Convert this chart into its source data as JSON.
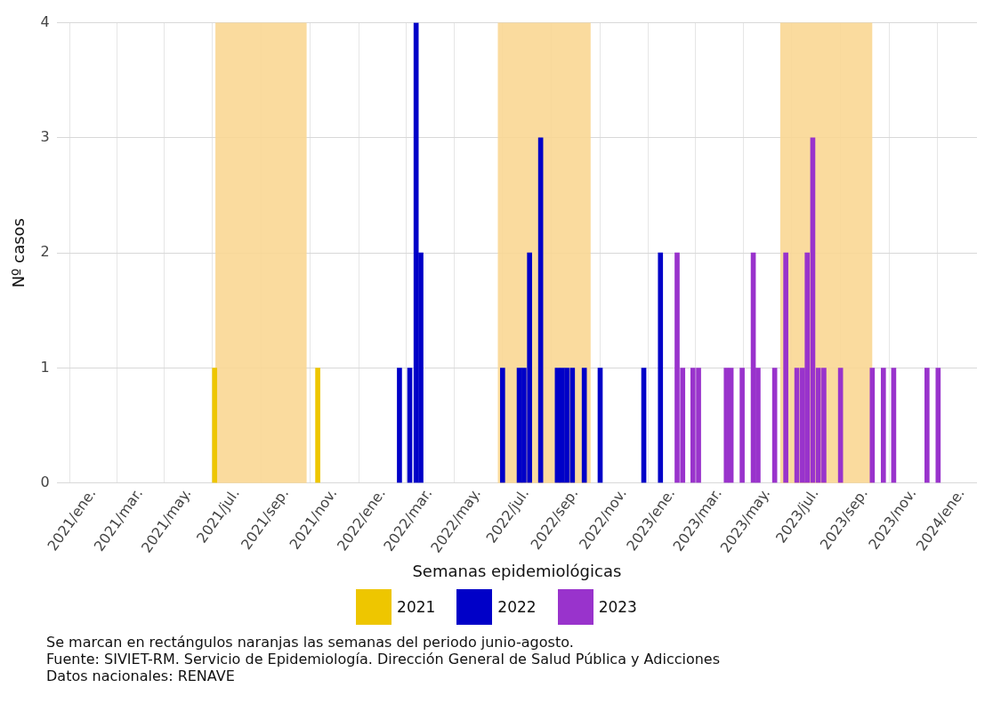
{
  "chart_data": {
    "type": "bar",
    "xlabel": "Semanas epidemiológicas",
    "ylabel": "Nº casos",
    "xlim": [
      "2020-11-16",
      "2024-01-20"
    ],
    "xticks": [
      {
        "value": "2021-01-01",
        "label": "2021/ene."
      },
      {
        "value": "2021-03-01",
        "label": "2021/mar."
      },
      {
        "value": "2021-05-01",
        "label": "2021/may."
      },
      {
        "value": "2021-07-01",
        "label": "2021/jul."
      },
      {
        "value": "2021-09-01",
        "label": "2021/sep."
      },
      {
        "value": "2021-11-01",
        "label": "2021/nov."
      },
      {
        "value": "2022-01-01",
        "label": "2022/ene."
      },
      {
        "value": "2022-03-01",
        "label": "2022/mar."
      },
      {
        "value": "2022-05-01",
        "label": "2022/may."
      },
      {
        "value": "2022-07-01",
        "label": "2022/jul."
      },
      {
        "value": "2022-09-01",
        "label": "2022/sep."
      },
      {
        "value": "2022-11-01",
        "label": "2022/nov."
      },
      {
        "value": "2023-01-01",
        "label": "2023/ene."
      },
      {
        "value": "2023-03-01",
        "label": "2023/mar."
      },
      {
        "value": "2023-05-01",
        "label": "2023/may."
      },
      {
        "value": "2023-07-01",
        "label": "2023/jul."
      },
      {
        "value": "2023-09-01",
        "label": "2023/sep."
      },
      {
        "value": "2023-11-01",
        "label": "2023/nov."
      },
      {
        "value": "2024-01-01",
        "label": "2024/ene."
      }
    ],
    "ylim": [
      0,
      4
    ],
    "yticks": [
      0,
      1,
      2,
      3,
      4
    ],
    "grid": true,
    "legend": "bottom",
    "series": [
      {
        "name": "2021",
        "color": "#eec600",
        "x": [
          "2021-06-03",
          "2021-10-11"
        ],
        "values": [
          1,
          1
        ]
      },
      {
        "name": "2022",
        "color": "#0000c8",
        "x": [
          "2022-01-22",
          "2022-02-04",
          "2022-02-12",
          "2022-02-18",
          "2022-06-01",
          "2022-06-22",
          "2022-06-28",
          "2022-07-05",
          "2022-07-19",
          "2022-08-09",
          "2022-08-15",
          "2022-08-21",
          "2022-08-28",
          "2022-09-12",
          "2022-10-02",
          "2022-11-26",
          "2022-12-17"
        ],
        "values": [
          1,
          1,
          4,
          2,
          1,
          1,
          1,
          2,
          3,
          1,
          1,
          1,
          1,
          1,
          1,
          1,
          2
        ]
      },
      {
        "name": "2023",
        "color": "#9933cc",
        "x": [
          "2023-01-07",
          "2023-01-14",
          "2023-01-27",
          "2023-02-03",
          "2023-03-10",
          "2023-03-16",
          "2023-03-30",
          "2023-04-13",
          "2023-04-19",
          "2023-05-10",
          "2023-05-24",
          "2023-06-07",
          "2023-06-14",
          "2023-06-20",
          "2023-06-27",
          "2023-07-04",
          "2023-07-11",
          "2023-08-01",
          "2023-09-10",
          "2023-09-24",
          "2023-10-07",
          "2023-11-18",
          "2023-12-02"
        ],
        "values": [
          2,
          1,
          1,
          1,
          1,
          1,
          1,
          2,
          1,
          1,
          2,
          1,
          1,
          2,
          3,
          1,
          1,
          1,
          1,
          1,
          1,
          1,
          1
        ]
      }
    ],
    "bands": [
      {
        "axis": "x",
        "from": "2021-06-04",
        "to": "2021-09-27",
        "label": null,
        "color": "#fad794"
      },
      {
        "axis": "x",
        "from": "2022-05-26",
        "to": "2022-09-20",
        "label": null,
        "color": "#fad794"
      },
      {
        "axis": "x",
        "from": "2023-05-17",
        "to": "2023-09-10",
        "label": null,
        "color": "#fad794"
      }
    ],
    "annotations": [
      "Se marcan en rectángulos naranjas las semanas del periodo junio-agosto.",
      "Fuente: SIVIET-RM. Servicio de Epidemiología. Dirección General de Salud Pública y Adicciones",
      "Datos nacionales: RENAVE"
    ]
  }
}
